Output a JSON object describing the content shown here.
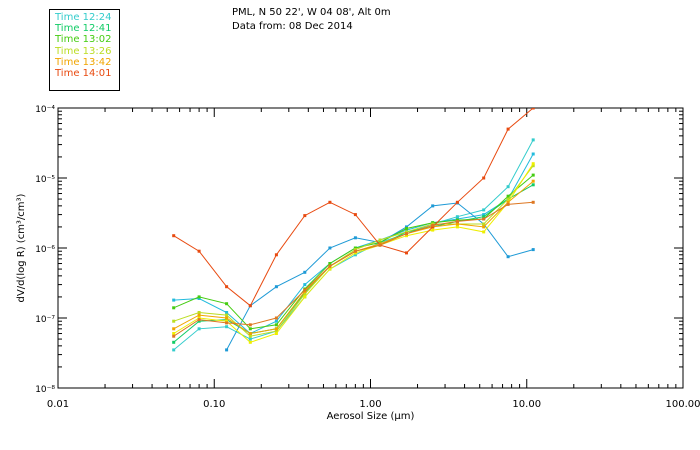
{
  "header": {
    "line1": "PML, N 50 22', W 04 08', Alt 0m",
    "line2": "Data from: 08 Dec 2014"
  },
  "chart_data": {
    "type": "line",
    "xlabel": "Aerosol Size (μm)",
    "ylabel": "dV/d(log R) (cm³/cm³)",
    "xscale": "log",
    "yscale": "log",
    "xlim": [
      0.01,
      100
    ],
    "ylim": [
      1e-08,
      0.0001
    ],
    "grid": false,
    "legend_position": "top-left",
    "x_ticks": [
      0.01,
      0.1,
      1.0,
      10.0,
      100.0
    ],
    "x_tick_labels": [
      "0.01",
      "0.10",
      "1.00",
      "10.00",
      "100.00"
    ],
    "y_ticks": [
      1e-08,
      1e-07,
      1e-06,
      1e-05,
      0.0001
    ],
    "y_tick_labels": [
      "10⁻⁸",
      "10⁻⁷",
      "10⁻⁶",
      "10⁻⁵",
      "10⁻⁴"
    ],
    "x": [
      0.055,
      0.08,
      0.12,
      0.17,
      0.25,
      0.38,
      0.55,
      0.8,
      1.15,
      1.7,
      2.5,
      3.6,
      5.3,
      7.6,
      11.0
    ],
    "series": [
      {
        "name": "Time 12:24",
        "color": "#33cccc",
        "values": [
          3.5e-08,
          7e-08,
          7.5e-08,
          5e-08,
          6.5e-08,
          2e-07,
          5e-07,
          8e-07,
          1.2e-06,
          1.6e-06,
          2.2e-06,
          2.8e-06,
          3.5e-06,
          7.5e-06,
          3.5e-05
        ]
      },
      {
        "name": "",
        "color": "#22bbdd",
        "values": [
          1.8e-07,
          1.9e-07,
          1.2e-07,
          6e-08,
          9e-08,
          3e-07,
          6e-07,
          1e-06,
          1.3e-06,
          1.8e-06,
          2.3e-06,
          2.6e-06,
          3e-06,
          5e-06,
          2.2e-05
        ]
      },
      {
        "name": "",
        "color": "#1e9ad6",
        "values": [
          null,
          null,
          3.5e-08,
          1.5e-07,
          2.8e-07,
          4.5e-07,
          1e-06,
          1.4e-06,
          1.2e-06,
          2e-06,
          4e-06,
          4.4e-06,
          2.2e-06,
          7.5e-07,
          9.5e-07
        ]
      },
      {
        "name": "Time 12:41",
        "color": "#11cc66",
        "values": [
          4.5e-08,
          9e-08,
          9.5e-08,
          6e-08,
          7e-08,
          2.3e-07,
          5.5e-07,
          9e-07,
          1.1e-06,
          1.7e-06,
          2e-06,
          2.4e-06,
          2.8e-06,
          5e-06,
          8e-06
        ]
      },
      {
        "name": "Time 13:02",
        "color": "#44cc11",
        "values": [
          1.4e-07,
          2e-07,
          1.6e-07,
          7e-08,
          8e-08,
          2.6e-07,
          6e-07,
          1e-06,
          1.2e-06,
          1.9e-06,
          2.3e-06,
          2.5e-06,
          2.6e-06,
          5.5e-06,
          1.1e-05
        ]
      },
      {
        "name": "Time 13:26",
        "color": "#bbdd22",
        "values": [
          9e-08,
          1.2e-07,
          1.1e-07,
          5.5e-08,
          6.5e-08,
          2.2e-07,
          5.5e-07,
          9.5e-07,
          1.3e-06,
          1.7e-06,
          2.2e-06,
          2.2e-06,
          2.2e-06,
          5e-06,
          1.5e-05
        ]
      },
      {
        "name": "",
        "color": "#eeee00",
        "values": [
          6e-08,
          1e-07,
          9e-08,
          4.5e-08,
          6e-08,
          2e-07,
          5e-07,
          8.5e-07,
          1.1e-06,
          1.5e-06,
          1.8e-06,
          2e-06,
          1.7e-06,
          4.5e-06,
          1.6e-05
        ]
      },
      {
        "name": "Time 13:42",
        "color": "#f0a500",
        "values": [
          7e-08,
          1.1e-07,
          1e-07,
          6e-08,
          7e-08,
          2.4e-07,
          5.5e-07,
          9e-07,
          1.15e-06,
          1.6e-06,
          2e-06,
          2.2e-06,
          2e-06,
          4.5e-06,
          9e-06
        ]
      },
      {
        "name": "Time 14:01",
        "color": "#e84a10",
        "values": [
          1.5e-06,
          9e-07,
          2.8e-07,
          1.5e-07,
          8e-07,
          2.9e-06,
          4.5e-06,
          3e-06,
          1.1e-06,
          8.5e-07,
          2e-06,
          4.5e-06,
          1e-05,
          5e-05,
          0.0001
        ]
      },
      {
        "name": "",
        "color": "#dd7722",
        "values": [
          5.5e-08,
          9.5e-08,
          8.5e-08,
          8e-08,
          1e-07,
          2.5e-07,
          5.5e-07,
          9e-07,
          1.1e-06,
          1.6e-06,
          2.1e-06,
          2.4e-06,
          2.6e-06,
          4.2e-06,
          4.5e-06
        ]
      }
    ]
  }
}
